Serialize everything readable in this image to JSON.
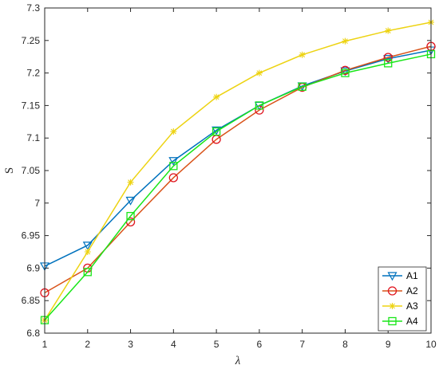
{
  "chart_data": {
    "type": "line",
    "title": "",
    "xlabel": "λ",
    "ylabel": "S",
    "x": [
      1,
      2,
      3,
      4,
      5,
      6,
      7,
      8,
      9,
      10
    ],
    "xlim": [
      1,
      10
    ],
    "ylim": [
      6.8,
      7.3
    ],
    "x_ticks": [
      1,
      2,
      3,
      4,
      5,
      6,
      7,
      8,
      9,
      10
    ],
    "x_tick_labels": [
      "1",
      "2",
      "3",
      "4",
      "5",
      "6",
      "7",
      "8",
      "9",
      "10"
    ],
    "y_ticks": [
      6.8,
      6.85,
      6.9,
      6.95,
      7.0,
      7.05,
      7.1,
      7.15,
      7.2,
      7.25,
      7.3
    ],
    "y_tick_labels": [
      "6.8",
      "6.85",
      "6.9",
      "6.95",
      "7",
      "7.05",
      "7.1",
      "7.15",
      "7.2",
      "7.25",
      "7.3"
    ],
    "grid": false,
    "legend_position": "bottom-right",
    "series": [
      {
        "name": "A1",
        "color": "#0072BD",
        "marker": "triangle-down",
        "values": [
          6.903,
          6.935,
          7.004,
          7.065,
          7.112,
          7.15,
          7.18,
          7.203,
          7.222,
          7.235
        ]
      },
      {
        "name": "A2",
        "color": "#D95319",
        "marker_color": "#E0141E",
        "marker": "circle",
        "values": [
          6.862,
          6.9,
          6.971,
          7.039,
          7.098,
          7.143,
          7.178,
          7.204,
          7.224,
          7.241
        ]
      },
      {
        "name": "A3",
        "color": "#EDD312",
        "marker": "star",
        "values": [
          6.82,
          6.925,
          7.032,
          7.11,
          7.163,
          7.2,
          7.228,
          7.249,
          7.265,
          7.278
        ]
      },
      {
        "name": "A4",
        "color": "#19E619",
        "marker": "square",
        "values": [
          6.82,
          6.894,
          6.98,
          7.057,
          7.11,
          7.15,
          7.179,
          7.2,
          7.215,
          7.229
        ]
      }
    ]
  }
}
